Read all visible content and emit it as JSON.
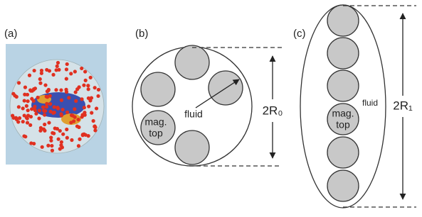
{
  "panels": {
    "a": {
      "label": "(a)"
    },
    "b": {
      "label": "(b)",
      "fluid": "fluid",
      "mag_top": [
        "mag.",
        "top"
      ],
      "dimension": "2R₀"
    },
    "c": {
      "label": "(c)",
      "fluid": "fluid",
      "mag_top": [
        "mag.",
        "top"
      ],
      "dimension": "2R₁"
    }
  }
}
